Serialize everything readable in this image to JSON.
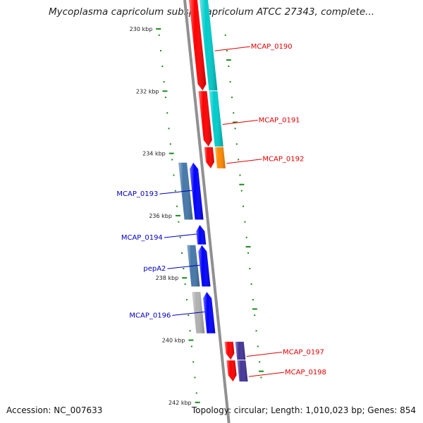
{
  "title": "Mycoplasma capricolum subsp. capricolum ATCC 27343, complete...",
  "footer": {
    "accession": "Accession: NC_007633",
    "summary": "Topology: circular; Length: 1,010,023 bp; Genes: 854"
  },
  "colors": {
    "backbone": "#909090",
    "ticks": "#1a8a1a",
    "forward_label": "#dd0000",
    "reverse_label": "#0000bb"
  },
  "map": {
    "unit": "bp",
    "ticks": [
      {
        "position": 230000,
        "label": "230 kbp"
      },
      {
        "position": 232000,
        "label": "232 kbp"
      },
      {
        "position": 234000,
        "label": "234 kbp"
      },
      {
        "position": 236000,
        "label": "236 kbp"
      },
      {
        "position": 238000,
        "label": "238 kbp"
      },
      {
        "position": 240000,
        "label": "240 kbp"
      },
      {
        "position": 242000,
        "label": "242 kbp"
      }
    ],
    "genes": [
      {
        "name": "MCAP_0190",
        "strand": "+",
        "cds_color": "#ff0000",
        "feature_color": "#00cccc",
        "start": 229050,
        "end": 232000
      },
      {
        "name": "MCAP_0191",
        "strand": "+",
        "cds_color": "#ff0000",
        "feature_color": "#00cccc",
        "start": 232000,
        "end": 233800
      },
      {
        "name": "MCAP_0192",
        "strand": "+",
        "cds_color": "#ff0000",
        "feature_color": "#ff8800",
        "start": 233800,
        "end": 234500
      },
      {
        "name": "MCAP_0193",
        "strand": "-",
        "cds_color": "#0000ff",
        "feature_color": "#4477aa",
        "start": 234300,
        "end": 236150
      },
      {
        "name": "MCAP_0194",
        "strand": "-",
        "cds_color": "#0000ff",
        "feature_color": "",
        "start": 236300,
        "end": 236950
      },
      {
        "name": "pepA2",
        "strand": "-",
        "cds_color": "#0000ff",
        "feature_color": "#4477aa",
        "start": 236950,
        "end": 238300
      },
      {
        "name": "MCAP_0196",
        "strand": "-",
        "cds_color": "#0000ff",
        "feature_color": "#b0b0b0",
        "start": 238450,
        "end": 239800
      },
      {
        "name": "MCAP_0197",
        "strand": "+",
        "cds_color": "#ff0000",
        "feature_color": "#443399",
        "start": 240050,
        "end": 240650
      },
      {
        "name": "MCAP_0198",
        "strand": "+",
        "cds_color": "#ff0000",
        "feature_color": "#443399",
        "start": 240650,
        "end": 241350
      }
    ]
  }
}
